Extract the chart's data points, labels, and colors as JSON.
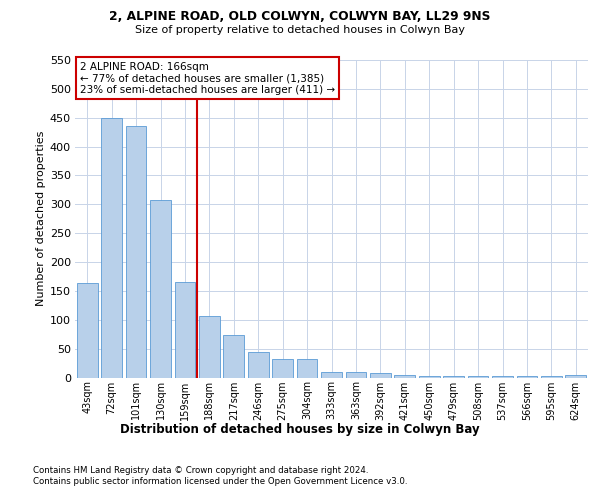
{
  "title_line1": "2, ALPINE ROAD, OLD COLWYN, COLWYN BAY, LL29 9NS",
  "title_line2": "Size of property relative to detached houses in Colwyn Bay",
  "xlabel": "Distribution of detached houses by size in Colwyn Bay",
  "ylabel": "Number of detached properties",
  "bar_labels": [
    "43sqm",
    "72sqm",
    "101sqm",
    "130sqm",
    "159sqm",
    "188sqm",
    "217sqm",
    "246sqm",
    "275sqm",
    "304sqm",
    "333sqm",
    "363sqm",
    "392sqm",
    "421sqm",
    "450sqm",
    "479sqm",
    "508sqm",
    "537sqm",
    "566sqm",
    "595sqm",
    "624sqm"
  ],
  "bar_values": [
    163,
    450,
    436,
    307,
    165,
    106,
    74,
    45,
    32,
    32,
    10,
    10,
    8,
    5,
    3,
    3,
    2,
    2,
    2,
    2,
    5
  ],
  "bar_color": "#b8d0ea",
  "bar_edgecolor": "#5b9bd5",
  "background_color": "#ffffff",
  "grid_color": "#c8d4e8",
  "vline_x": 4.5,
  "vline_color": "#cc0000",
  "annotation_line1": "2 ALPINE ROAD: 166sqm",
  "annotation_line2": "← 77% of detached houses are smaller (1,385)",
  "annotation_line3": "23% of semi-detached houses are larger (411) →",
  "annotation_box_edgecolor": "#cc0000",
  "ylim_max": 550,
  "yticks": [
    0,
    50,
    100,
    150,
    200,
    250,
    300,
    350,
    400,
    450,
    500,
    550
  ],
  "footer_line1": "Contains HM Land Registry data © Crown copyright and database right 2024.",
  "footer_line2": "Contains public sector information licensed under the Open Government Licence v3.0."
}
